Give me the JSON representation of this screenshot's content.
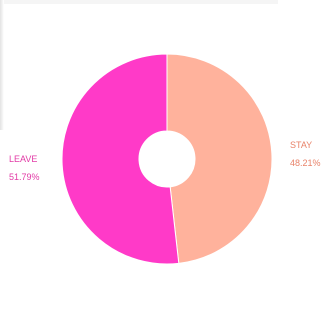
{
  "chart_data": {
    "type": "pie",
    "title": "",
    "donut": true,
    "slices": [
      {
        "label": "STAY",
        "value": 48.21,
        "percent_label": "48.21%",
        "color": "#ffb29c"
      },
      {
        "label": "LEAVE",
        "value": 51.79,
        "percent_label": "51.79%",
        "color": "#ff3ac8"
      }
    ]
  }
}
